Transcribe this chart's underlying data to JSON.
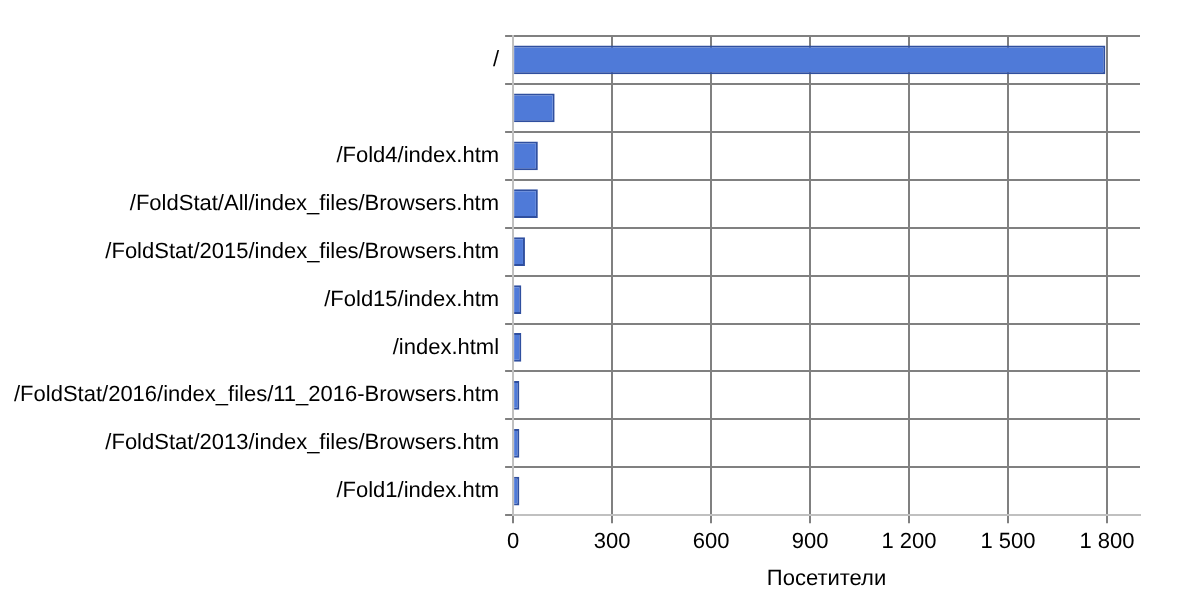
{
  "chart_data": {
    "type": "bar",
    "orientation": "horizontal",
    "xlabel": "Посетители",
    "categories": [
      "/",
      null,
      "/Fold4/index.htm",
      "/FoldStat/All/index_files/Browsers.htm",
      "/FoldStat/2015/index_files/Browsers.htm",
      "/Fold15/index.htm",
      "/index.html",
      "/FoldStat/2016/index_files/11_2016-Browsers.htm",
      "/FoldStat/2013/index_files/Browsers.htm",
      "/Fold1/index.htm"
    ],
    "values": [
      1795,
      126,
      75,
      75,
      36,
      25,
      25,
      19,
      19,
      19
    ],
    "color": "#4f7ad8",
    "xlim": [
      0,
      1900
    ],
    "xticks": [
      0,
      300,
      600,
      {
        "value": 900,
        "label": "900"
      },
      {
        "value": 1200,
        "label": "1 200"
      },
      {
        "value": 1500,
        "label": "1 500"
      },
      {
        "value": 1800,
        "label": "1 800"
      }
    ],
    "grid": true,
    "legend": false
  }
}
